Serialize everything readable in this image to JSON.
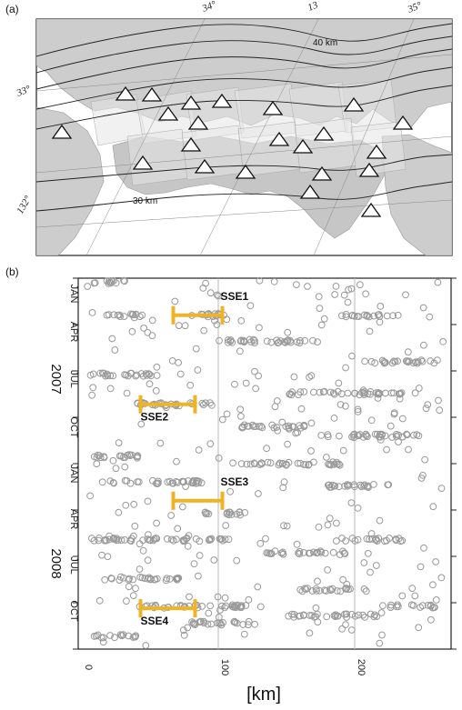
{
  "panel_a": {
    "label": "(a)",
    "lon_labels": [
      "34°",
      "13",
      "35°"
    ],
    "lat_labels": [
      "33°",
      "132°"
    ],
    "contour_labels": [
      "40 km",
      "30 km"
    ],
    "station_icon": "triangle-icon"
  },
  "panel_b": {
    "label": "(b)",
    "month_labels": [
      "JAN",
      "APR",
      "JUL",
      "OCT",
      "JAN",
      "APR",
      "JUL",
      "OCT"
    ],
    "year_labels": [
      "2007",
      "2008"
    ],
    "x_tick_labels": [
      "0",
      "100",
      "200"
    ],
    "x_axis_title": "[km]",
    "sse_labels": [
      "SSE1",
      "SSE2",
      "SSE3",
      "SSE4"
    ],
    "sse_color": "#f0b323",
    "marker_color": "#999999"
  },
  "chart_data": {
    "type": "scatter",
    "xlabel": "[km]",
    "xlim": [
      0,
      275
    ],
    "ylim": [
      2007.0,
      2009.0
    ],
    "x_ticks": [
      0,
      100,
      200
    ],
    "sse_bars": [
      {
        "label": "SSE1",
        "x0": 67,
        "x1": 103,
        "t": 2007.2
      },
      {
        "label": "SSE2",
        "x0": 43,
        "x1": 83,
        "t": 2007.68
      },
      {
        "label": "SSE3",
        "x0": 67,
        "x1": 103,
        "t": 2008.2
      },
      {
        "label": "SSE4",
        "x0": 43,
        "x1": 83,
        "t": 2008.78
      }
    ],
    "tremor_clusters": [
      {
        "x0": 5,
        "x1": 28,
        "t": 2007.02
      },
      {
        "x0": 15,
        "x1": 45,
        "t": 2007.2
      },
      {
        "x0": 80,
        "x1": 110,
        "t": 2007.2
      },
      {
        "x0": 190,
        "x1": 232,
        "t": 2007.2
      },
      {
        "x0": 100,
        "x1": 175,
        "t": 2007.34
      },
      {
        "x0": 205,
        "x1": 262,
        "t": 2007.45
      },
      {
        "x0": 5,
        "x1": 60,
        "t": 2007.52
      },
      {
        "x0": 150,
        "x1": 235,
        "t": 2007.62
      },
      {
        "x0": 40,
        "x1": 100,
        "t": 2007.68
      },
      {
        "x0": 110,
        "x1": 165,
        "t": 2007.8
      },
      {
        "x0": 175,
        "x1": 250,
        "t": 2007.85
      },
      {
        "x0": 5,
        "x1": 45,
        "t": 2007.96
      },
      {
        "x0": 110,
        "x1": 190,
        "t": 2008.0
      },
      {
        "x0": 15,
        "x1": 90,
        "t": 2008.1
      },
      {
        "x0": 180,
        "x1": 230,
        "t": 2008.12
      },
      {
        "x0": 90,
        "x1": 125,
        "t": 2008.27
      },
      {
        "x0": 5,
        "x1": 110,
        "t": 2008.41
      },
      {
        "x0": 190,
        "x1": 235,
        "t": 2008.41
      },
      {
        "x0": 135,
        "x1": 195,
        "t": 2008.48
      },
      {
        "x0": 15,
        "x1": 75,
        "t": 2008.62
      },
      {
        "x0": 160,
        "x1": 210,
        "t": 2008.68
      },
      {
        "x0": 40,
        "x1": 120,
        "t": 2008.77
      },
      {
        "x0": 150,
        "x1": 220,
        "t": 2008.82
      },
      {
        "x0": 225,
        "x1": 262,
        "t": 2008.77
      },
      {
        "x0": 80,
        "x1": 130,
        "t": 2008.86
      },
      {
        "x0": 5,
        "x1": 40,
        "t": 2008.93
      }
    ]
  }
}
